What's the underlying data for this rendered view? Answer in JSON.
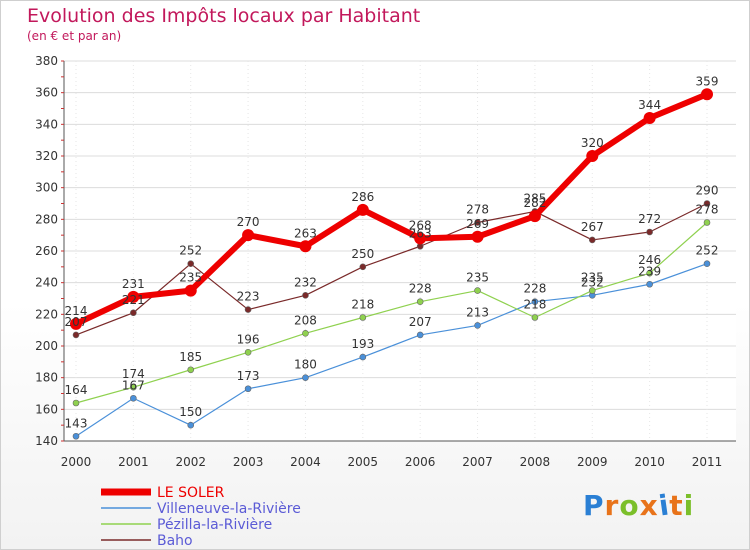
{
  "header": {
    "title": "Evolution des Impôts locaux par Habitant",
    "subtitle": "(en € et par an)"
  },
  "logo": {
    "text": "Proxiti",
    "letter_colors": [
      "#2a7fd4",
      "#e8731a",
      "#7bbf2a",
      "#e8731a",
      "#2a7fd4",
      "#e8731a",
      "#7bbf2a"
    ]
  },
  "chart_data": {
    "type": "line",
    "title": "Evolution des Impôts locaux par Habitant",
    "subtitle": "(en € et par an)",
    "xlabel": "",
    "ylabel": "",
    "x": [
      "2000",
      "2001",
      "2002",
      "2003",
      "2004",
      "2005",
      "2006",
      "2007",
      "2008",
      "2009",
      "2010",
      "2011"
    ],
    "yticks": [
      140,
      160,
      180,
      200,
      220,
      240,
      260,
      280,
      300,
      320,
      340,
      360,
      380
    ],
    "ylim": [
      140,
      380
    ],
    "grid": true,
    "legend": "bottom-left",
    "series": [
      {
        "name": "LE SOLER",
        "color": "#ee0000",
        "values": [
          214,
          231,
          235,
          270,
          263,
          286,
          268,
          269,
          282,
          320,
          344,
          359
        ],
        "labels": [
          "214",
          "231",
          "235",
          "270",
          "263",
          "286",
          "268",
          "269",
          "282",
          "320",
          "344",
          "359"
        ]
      },
      {
        "name": "Villeneuve-la-Rivière",
        "color": "#4a90d9",
        "values": [
          143,
          167,
          150,
          173,
          180,
          193,
          207,
          213,
          228,
          232,
          239,
          252
        ],
        "labels": [
          "143",
          "167",
          "150",
          "173",
          "180",
          "193",
          "207",
          "213",
          "228",
          "232",
          "239",
          "252"
        ]
      },
      {
        "name": "Pézilla-la-Rivière",
        "color": "#8fd14f",
        "values": [
          164,
          174,
          185,
          196,
          208,
          218,
          228,
          235,
          218,
          235,
          246,
          278
        ],
        "labels": [
          "164",
          "174",
          "185",
          "196",
          "208",
          "218",
          "228",
          "235",
          "218",
          "235",
          "246",
          "278"
        ]
      },
      {
        "name": "Baho",
        "color": "#7a2a2a",
        "values": [
          207,
          221,
          252,
          223,
          232,
          250,
          263,
          278,
          285,
          267,
          272,
          290
        ],
        "labels": [
          "207",
          "221",
          "252",
          "223",
          "232",
          "250",
          "263",
          "278",
          "285",
          "267",
          "272",
          "290"
        ]
      }
    ]
  }
}
